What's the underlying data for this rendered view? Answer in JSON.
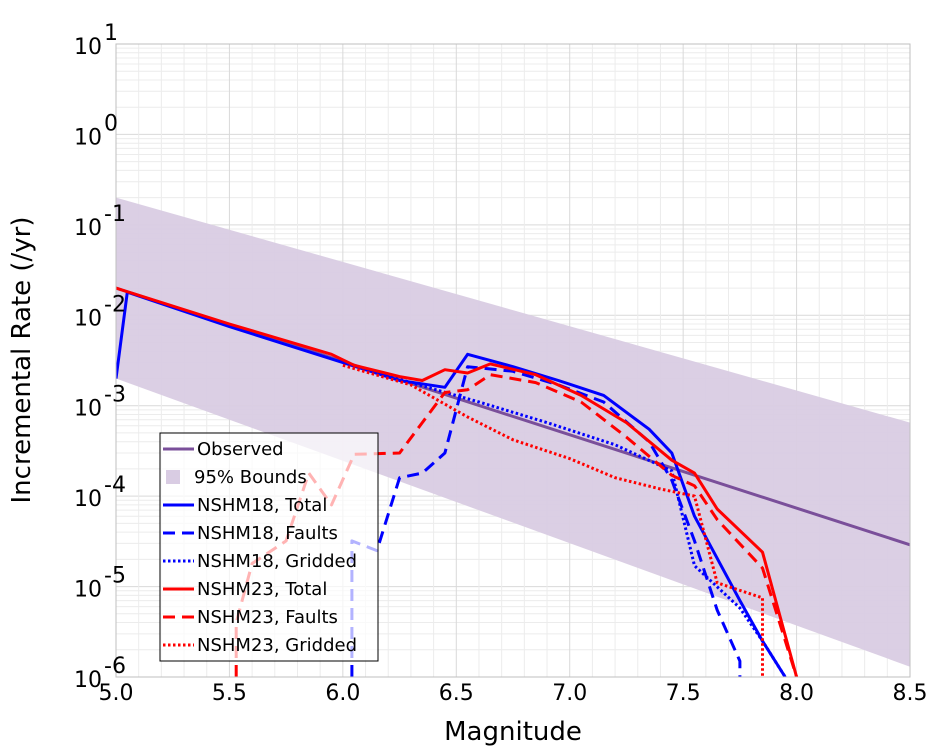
{
  "chart_data": {
    "type": "line",
    "title": "",
    "xlabel": "Magnitude",
    "ylabel": "Incremental Rate (/yr)",
    "xlim": [
      5.0,
      8.5
    ],
    "ylim": [
      1e-06,
      10
    ],
    "yscale": "log",
    "grid": true,
    "legend_position": "lower-left",
    "x_ticks": [
      "5.0",
      "5.5",
      "6.0",
      "6.5",
      "7.0",
      "7.5",
      "8.0",
      "8.5"
    ],
    "y_ticks": [
      {
        "base": "10",
        "exp": "-6",
        "value": 1e-06
      },
      {
        "base": "10",
        "exp": "-5",
        "value": 1e-05
      },
      {
        "base": "10",
        "exp": "-4",
        "value": 0.0001
      },
      {
        "base": "10",
        "exp": "-3",
        "value": 0.001
      },
      {
        "base": "10",
        "exp": "-2",
        "value": 0.01
      },
      {
        "base": "10",
        "exp": "-1",
        "value": 0.1
      },
      {
        "base": "10",
        "exp": "0",
        "value": 1
      },
      {
        "base": "10",
        "exp": "1",
        "value": 10
      }
    ],
    "band": {
      "name": "95% Bounds",
      "color": "#d9cce3",
      "x": [
        5.0,
        8.5
      ],
      "upper": [
        0.2,
        0.00065
      ],
      "lower": [
        0.002,
        1.3e-06
      ]
    },
    "series": [
      {
        "name": "Observed",
        "color": "#7a4f9a",
        "dash": "solid",
        "width": 3,
        "points": [
          [
            5.0,
            0.02
          ],
          [
            8.5,
            2.9e-05
          ]
        ]
      },
      {
        "name": "NSHM18, Total",
        "color": "#0000ff",
        "dash": "solid",
        "width": 3,
        "points": [
          [
            5.0,
            0.002
          ],
          [
            5.05,
            0.018
          ],
          [
            5.5,
            0.0075
          ],
          [
            6.0,
            0.003
          ],
          [
            6.25,
            0.0019
          ],
          [
            6.45,
            0.0016
          ],
          [
            6.55,
            0.0037
          ],
          [
            6.75,
            0.0027
          ],
          [
            6.95,
            0.0019
          ],
          [
            7.15,
            0.0013
          ],
          [
            7.35,
            0.00055
          ],
          [
            7.45,
            0.0003
          ],
          [
            7.55,
            6e-05
          ],
          [
            7.75,
            7e-06
          ],
          [
            7.85,
            2.5e-06
          ],
          [
            7.95,
            1e-06
          ]
        ]
      },
      {
        "name": "NSHM18, Faults",
        "color": "#0000ff",
        "dash": "dashed",
        "width": 3,
        "points": [
          [
            6.04,
            1e-06
          ],
          [
            6.04,
            3.2e-05
          ],
          [
            6.15,
            2.5e-05
          ],
          [
            6.25,
            0.00016
          ],
          [
            6.35,
            0.00018
          ],
          [
            6.45,
            0.0003
          ],
          [
            6.55,
            0.0027
          ],
          [
            6.75,
            0.0024
          ],
          [
            6.95,
            0.0017
          ],
          [
            7.15,
            0.0011
          ],
          [
            7.35,
            0.0004
          ],
          [
            7.45,
            0.00015
          ],
          [
            7.55,
            3.2e-05
          ],
          [
            7.65,
            5.5e-06
          ],
          [
            7.75,
            1.5e-06
          ],
          [
            7.75,
            1e-06
          ]
        ]
      },
      {
        "name": "NSHM18, Gridded",
        "color": "#0000ff",
        "dash": "dotted",
        "width": 3,
        "points": [
          [
            6.0,
            0.003
          ],
          [
            6.3,
            0.0018
          ],
          [
            6.6,
            0.0011
          ],
          [
            6.9,
            0.00065
          ],
          [
            7.2,
            0.00037
          ],
          [
            7.45,
            0.00019
          ],
          [
            7.55,
            1.7e-05
          ],
          [
            7.75,
            5.8e-06
          ],
          [
            7.85,
            2.5e-06
          ],
          [
            7.95,
            1e-06
          ]
        ]
      },
      {
        "name": "NSHM23, Total",
        "color": "#ff0000",
        "dash": "solid",
        "width": 3,
        "points": [
          [
            5.0,
            0.02
          ],
          [
            5.5,
            0.008
          ],
          [
            5.95,
            0.0037
          ],
          [
            6.05,
            0.0028
          ],
          [
            6.25,
            0.0021
          ],
          [
            6.35,
            0.0019
          ],
          [
            6.45,
            0.0025
          ],
          [
            6.55,
            0.0023
          ],
          [
            6.65,
            0.0029
          ],
          [
            6.85,
            0.0022
          ],
          [
            7.05,
            0.0013
          ],
          [
            7.25,
            0.00065
          ],
          [
            7.45,
            0.00025
          ],
          [
            7.55,
            0.00018
          ],
          [
            7.65,
            7.2e-05
          ],
          [
            7.85,
            2.4e-05
          ],
          [
            8.0,
            1e-06
          ]
        ]
      },
      {
        "name": "NSHM23, Faults",
        "color": "#ff0000",
        "dash": "dashed",
        "width": 3,
        "points": [
          [
            5.53,
            1e-06
          ],
          [
            5.53,
            4e-06
          ],
          [
            5.6,
            1.8e-05
          ],
          [
            5.75,
            3.2e-05
          ],
          [
            5.85,
            0.00018
          ],
          [
            5.95,
            8e-05
          ],
          [
            6.05,
            0.00029
          ],
          [
            6.25,
            0.0003
          ],
          [
            6.35,
            0.00065
          ],
          [
            6.45,
            0.0014
          ],
          [
            6.55,
            0.0015
          ],
          [
            6.65,
            0.0022
          ],
          [
            6.85,
            0.0018
          ],
          [
            7.05,
            0.0011
          ],
          [
            7.25,
            0.00045
          ],
          [
            7.45,
            0.00017
          ],
          [
            7.55,
            0.00013
          ],
          [
            7.65,
            5.5e-05
          ],
          [
            7.85,
            1.6e-05
          ],
          [
            8.0,
            1e-06
          ]
        ]
      },
      {
        "name": "NSHM23, Gridded",
        "color": "#ff0000",
        "dash": "dotted",
        "width": 3,
        "points": [
          [
            6.0,
            0.0028
          ],
          [
            6.3,
            0.0017
          ],
          [
            6.55,
            0.00075
          ],
          [
            6.75,
            0.00042
          ],
          [
            7.0,
            0.00026
          ],
          [
            7.2,
            0.00016
          ],
          [
            7.4,
            0.00012
          ],
          [
            7.55,
            0.0001
          ],
          [
            7.65,
            1.1e-05
          ],
          [
            7.85,
            7.5e-06
          ],
          [
            7.85,
            1e-06
          ]
        ]
      }
    ]
  }
}
